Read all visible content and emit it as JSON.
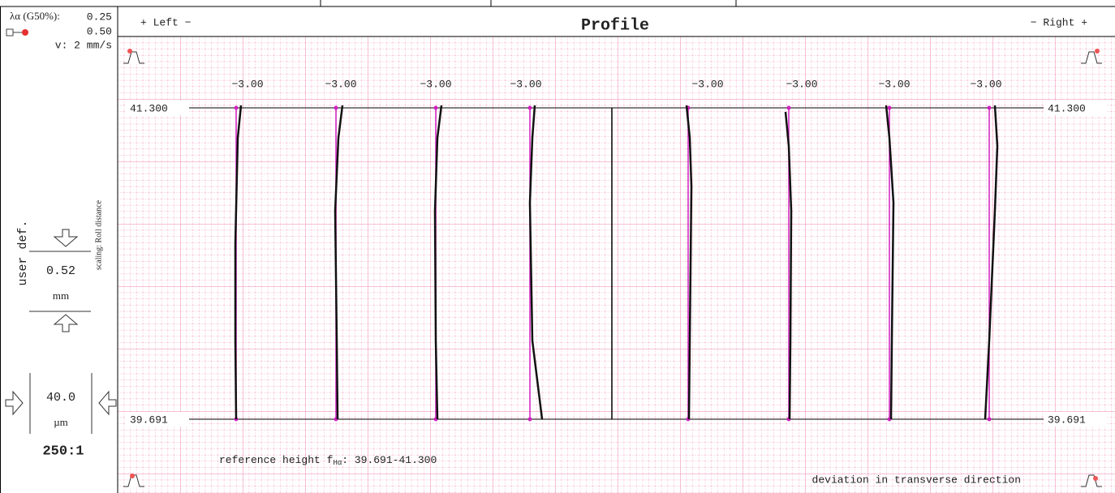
{
  "header": {
    "lambda_label": "λα (G50%):",
    "lambda_value": "0.25",
    "tip_value": "0.50",
    "speed": "v:  2 mm/s",
    "left": "+ Left −",
    "title": "Profile",
    "right": "− Right +"
  },
  "side": {
    "mode": "user def.",
    "scaling": "scaling: Roll distance",
    "length": "0.52",
    "length_unit": "mm",
    "height": "40.0",
    "height_unit": "µm",
    "ratio": "250:1"
  },
  "plot": {
    "upper": "41.300",
    "lower": "39.691",
    "tooth_labels": [
      "−3.00",
      "−3.00",
      "−3.00",
      "−3.00",
      "−3.00",
      "−3.00",
      "−3.00",
      "−3.00"
    ],
    "reference": "reference height f",
    "reference_sub": "Hα",
    "reference_value": ": 39.691-41.300",
    "footer": "deviation in transverse direction"
  }
}
